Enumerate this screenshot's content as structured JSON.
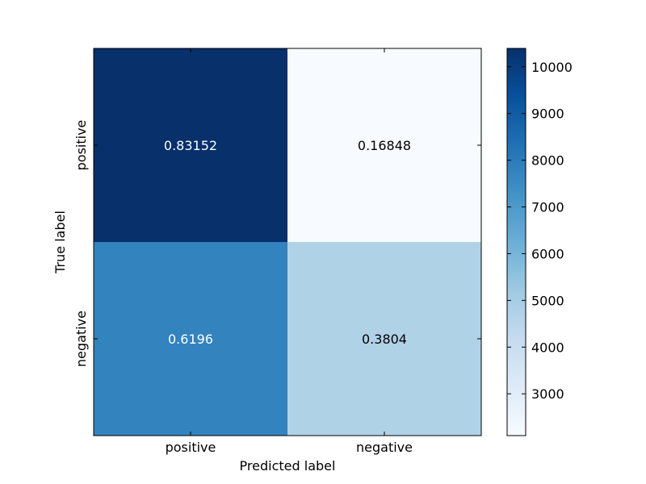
{
  "chart_data": {
    "type": "heatmap",
    "title": "",
    "xlabel": "Predicted label",
    "ylabel": "True label",
    "x_categories": [
      "positive",
      "negative"
    ],
    "y_categories": [
      "positive",
      "negative"
    ],
    "cell_labels": [
      [
        "0.83152",
        "0.16848"
      ],
      [
        "0.6196",
        "0.3804"
      ]
    ],
    "counts": [
      [
        10393,
        2106
      ],
      [
        7745,
        4755
      ]
    ],
    "colormap": "Blues",
    "colorbar": {
      "min": 2106,
      "max": 10393,
      "ticks": [
        3000,
        4000,
        5000,
        6000,
        7000,
        8000,
        9000,
        10000
      ],
      "tick_labels": [
        "3000",
        "4000",
        "5000",
        "6000",
        "7000",
        "8000",
        "9000",
        "10000"
      ]
    },
    "text_colors": {
      "dark_cell": "#ffffff",
      "light_cell": "#000000"
    }
  }
}
